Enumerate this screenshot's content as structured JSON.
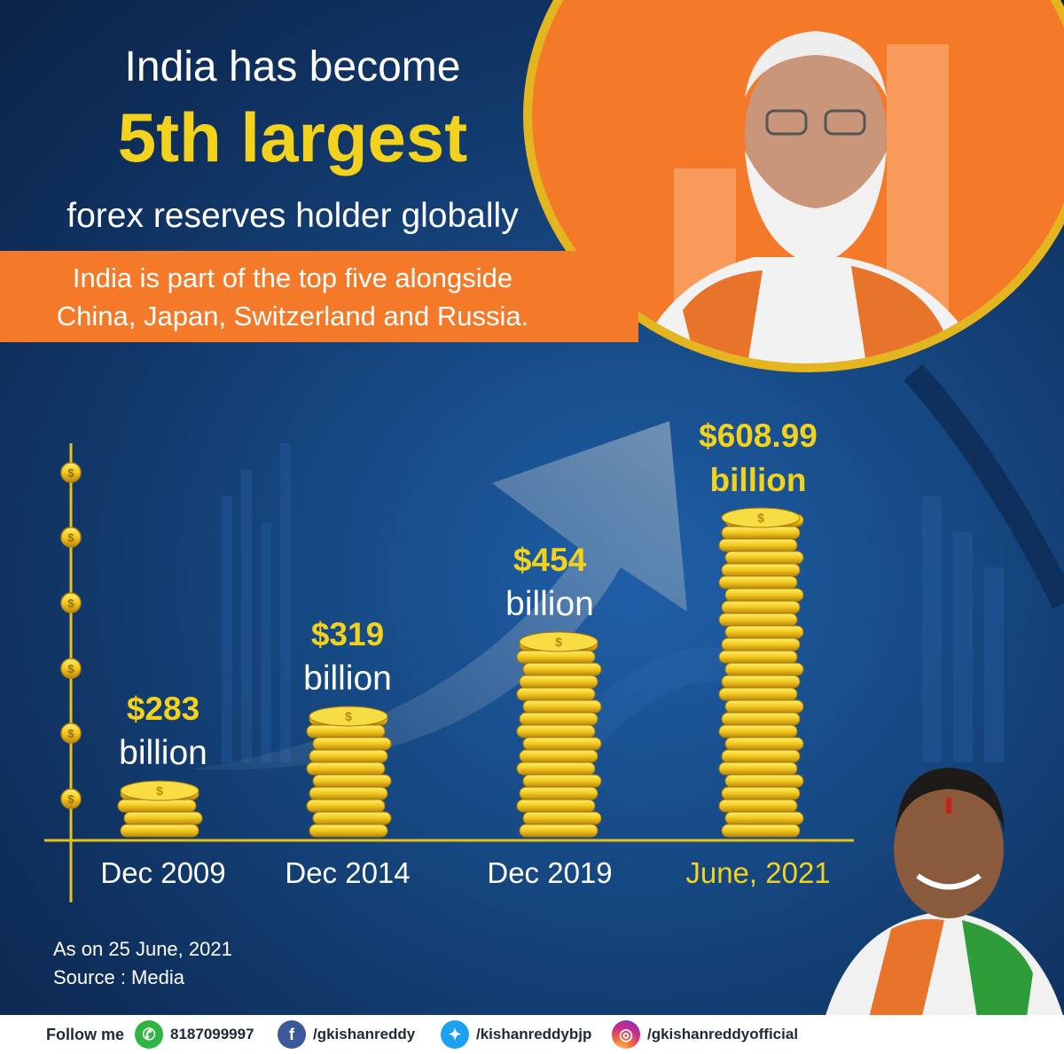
{
  "headline": {
    "line1": "India has become",
    "line2": "5th largest",
    "line3": "forex reserves holder globally"
  },
  "banner": {
    "line1": "India is part of the top five alongside",
    "line2": "China, Japan, Switzerland and Russia."
  },
  "chart_data": {
    "type": "bar",
    "title": "",
    "categories": [
      "Dec 2009",
      "Dec 2014",
      "Dec 2019",
      "June, 2021"
    ],
    "values": [
      283,
      319,
      454,
      608.99
    ],
    "amount_labels": [
      "$283",
      "$319",
      "$454",
      "$608.99"
    ],
    "unit_label": "billion",
    "xlabel": "",
    "ylabel": "",
    "ylim": [
      0,
      700
    ],
    "grid": false,
    "legend": "none",
    "y_axis_marker": "coin-icon"
  },
  "footnote": {
    "as_on": "As on 25 June, 2021",
    "source": "Source : Media"
  },
  "footer": {
    "follow": "Follow me",
    "whatsapp": "8187099997",
    "facebook": "/gkishanreddy",
    "twitter": "/kishanreddybjp",
    "instagram": "/gkishanreddyofficial"
  },
  "colors": {
    "accent_orange": "#f47a2a",
    "accent_yellow": "#f3d21d",
    "background_blue": "#164983",
    "coin_gold": "#f2c81f"
  }
}
